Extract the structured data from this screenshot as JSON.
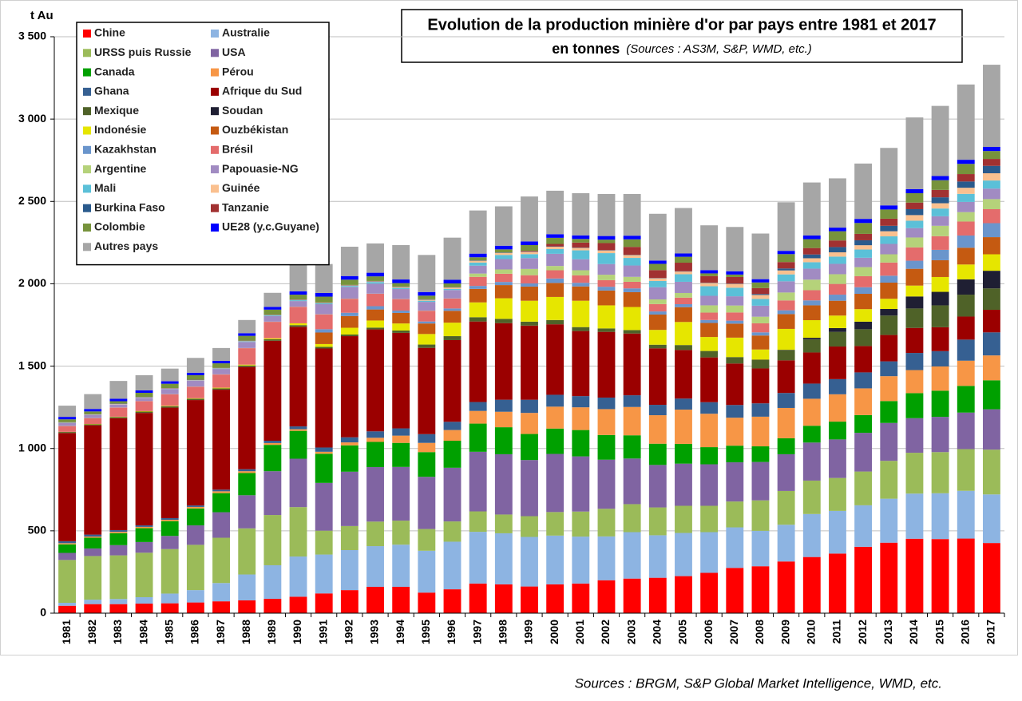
{
  "chart_data": {
    "type": "stacked-bar",
    "title": "Evolution de la production minière d'or par pays entre 1981 et 2017",
    "subtitle": "en tonnes",
    "subtitle_note": "(Sources : AS3M, S&P, WMD, etc.)",
    "footer": "Sources : BRGM, S&P Global Market Intelligence, WMD, etc.",
    "y_label": "t Au",
    "ylim": [
      0,
      3500
    ],
    "yticks": [
      0,
      500,
      {
        "value": 1000,
        "label": "1 000"
      },
      {
        "value": 1500,
        "label": "1 500"
      },
      {
        "value": 2000,
        "label": "2 000"
      },
      {
        "value": 2500,
        "label": "2 500"
      },
      {
        "value": 3000,
        "label": "3 000"
      },
      {
        "value": 3500,
        "label": "3 500"
      }
    ],
    "grid": true,
    "legend": "top-left",
    "categories": [
      "1981",
      "1982",
      "1983",
      "1984",
      "1985",
      "1986",
      "1987",
      "1988",
      "1989",
      "1990",
      "1991",
      "1992",
      "1993",
      "1994",
      "1995",
      "1996",
      "1997",
      "1998",
      "1999",
      "2000",
      "2001",
      "2002",
      "2003",
      "2004",
      "2005",
      "2006",
      "2007",
      "2008",
      "2009",
      "2010",
      "2011",
      "2012",
      "2013",
      "2014",
      "2015",
      "2016",
      "2017"
    ],
    "series": [
      {
        "name": "Chine",
        "color": "#ff0000",
        "values": [
          45,
          55,
          55,
          58,
          60,
          65,
          72,
          78,
          87,
          100,
          120,
          140,
          160,
          160,
          125,
          145,
          180,
          175,
          162,
          175,
          180,
          200,
          210,
          215,
          225,
          245,
          275,
          285,
          314,
          341,
          362,
          403,
          428,
          452,
          450,
          453,
          426
        ]
      },
      {
        "name": "Australie",
        "color": "#8db4e2",
        "values": [
          18,
          27,
          31,
          39,
          59,
          75,
          111,
          157,
          204,
          244,
          236,
          243,
          247,
          256,
          254,
          289,
          314,
          310,
          301,
          296,
          285,
          266,
          282,
          258,
          262,
          247,
          246,
          215,
          223,
          261,
          259,
          252,
          267,
          274,
          278,
          290,
          295
        ]
      },
      {
        "name": "URSS puis Russie",
        "color": "#9bbb59",
        "values": [
          260,
          265,
          265,
          270,
          270,
          275,
          275,
          280,
          305,
          300,
          145,
          146,
          149,
          146,
          132,
          123,
          124,
          114,
          126,
          143,
          152,
          168,
          170,
          169,
          165,
          160,
          157,
          185,
          205,
          203,
          200,
          205,
          230,
          248,
          250,
          253,
          272
        ]
      },
      {
        "name": "USA",
        "color": "#8064a2",
        "values": [
          43,
          46,
          62,
          65,
          80,
          118,
          155,
          201,
          266,
          294,
          290,
          330,
          331,
          326,
          317,
          326,
          362,
          366,
          341,
          353,
          335,
          298,
          277,
          258,
          256,
          252,
          238,
          233,
          223,
          231,
          234,
          235,
          230,
          210,
          214,
          222,
          245
        ]
      },
      {
        "name": "Canada",
        "color": "#00a000",
        "values": [
          52,
          65,
          73,
          84,
          90,
          103,
          116,
          135,
          160,
          169,
          177,
          160,
          153,
          146,
          150,
          164,
          171,
          164,
          158,
          154,
          160,
          150,
          141,
          129,
          120,
          104,
          101,
          95,
          97,
          102,
          108,
          108,
          133,
          152,
          159,
          162,
          176
        ]
      },
      {
        "name": "Pérou",
        "color": "#f79646",
        "values": [
          7,
          7,
          8,
          8,
          8,
          9,
          11,
          11,
          11,
          10,
          12,
          18,
          25,
          44,
          56,
          65,
          77,
          94,
          128,
          133,
          138,
          157,
          172,
          173,
          208,
          203,
          170,
          180,
          184,
          164,
          166,
          162,
          151,
          140,
          147,
          153,
          151
        ]
      },
      {
        "name": "Ghana",
        "color": "#366092",
        "values": [
          12,
          12,
          10,
          9,
          10,
          9,
          10,
          12,
          14,
          17,
          26,
          31,
          39,
          44,
          53,
          50,
          54,
          73,
          80,
          72,
          68,
          70,
          71,
          63,
          67,
          70,
          77,
          81,
          91,
          92,
          92,
          97,
          90,
          104,
          93,
          128,
          140
        ]
      },
      {
        "name": "Afrique du Sud",
        "color": "#9b0000",
        "values": [
          657,
          664,
          680,
          683,
          671,
          640,
          607,
          621,
          607,
          605,
          601,
          614,
          619,
          580,
          524,
          496,
          489,
          465,
          450,
          428,
          395,
          399,
          375,
          343,
          295,
          272,
          252,
          212,
          198,
          189,
          198,
          160,
          160,
          152,
          145,
          140,
          137
        ]
      },
      {
        "name": "Mexique",
        "color": "#4f6228",
        "values": [
          6,
          6,
          7,
          8,
          8,
          8,
          8,
          9,
          9,
          10,
          10,
          10,
          11,
          14,
          20,
          24,
          26,
          26,
          24,
          26,
          24,
          21,
          21,
          22,
          30,
          39,
          39,
          51,
          62,
          79,
          89,
          102,
          118,
          118,
          133,
          133,
          130
        ]
      },
      {
        "name": "Soudan",
        "color": "#1f1f33",
        "values": [
          0,
          0,
          0,
          0,
          0,
          0,
          0,
          0,
          0,
          0,
          0,
          0,
          0,
          0,
          0,
          0,
          0,
          0,
          0,
          0,
          0,
          0,
          0,
          0,
          0,
          0,
          0,
          2,
          2,
          10,
          23,
          46,
          40,
          73,
          82,
          93,
          107
        ]
      },
      {
        "name": "Indonésie",
        "color": "#e6e600",
        "values": [
          1,
          2,
          2,
          3,
          3,
          3,
          4,
          5,
          6,
          11,
          17,
          41,
          43,
          43,
          64,
          82,
          90,
          125,
          127,
          140,
          160,
          140,
          140,
          90,
          140,
          85,
          118,
          62,
          127,
          107,
          76,
          76,
          62,
          66,
          90,
          90,
          100
        ]
      },
      {
        "name": "Ouzbékistan",
        "color": "#c55a11",
        "values": [
          0,
          0,
          0,
          0,
          0,
          0,
          0,
          0,
          0,
          0,
          70,
          71,
          67,
          64,
          64,
          72,
          82,
          80,
          86,
          85,
          87,
          90,
          90,
          93,
          90,
          85,
          85,
          85,
          90,
          90,
          90,
          93,
          98,
          102,
          102,
          102,
          104
        ]
      },
      {
        "name": "Kazakhstan",
        "color": "#6a95cc",
        "values": [
          0,
          0,
          0,
          0,
          0,
          0,
          0,
          0,
          0,
          0,
          20,
          20,
          20,
          14,
          12,
          14,
          18,
          19,
          19,
          27,
          22,
          23,
          23,
          19,
          18,
          18,
          18,
          19,
          23,
          30,
          37,
          40,
          42,
          49,
          63,
          74,
          85
        ]
      },
      {
        "name": "Brésil",
        "color": "#e46c6c",
        "values": [
          35,
          35,
          55,
          60,
          70,
          70,
          80,
          100,
          100,
          100,
          90,
          85,
          75,
          70,
          65,
          60,
          55,
          50,
          50,
          50,
          45,
          40,
          40,
          45,
          40,
          45,
          50,
          55,
          60,
          62,
          65,
          67,
          80,
          81,
          83,
          85,
          85
        ]
      },
      {
        "name": "Argentine",
        "color": "#b5d27a",
        "values": [
          1,
          1,
          1,
          1,
          1,
          1,
          1,
          1,
          1,
          1,
          1,
          1,
          1,
          1,
          1,
          1,
          20,
          26,
          38,
          26,
          31,
          33,
          30,
          28,
          28,
          44,
          42,
          40,
          48,
          64,
          59,
          55,
          50,
          60,
          63,
          57,
          61
        ]
      },
      {
        "name": "Papouasie-NG",
        "color": "#a18bc2",
        "values": [
          17,
          18,
          18,
          19,
          31,
          36,
          33,
          37,
          34,
          34,
          61,
          71,
          61,
          60,
          53,
          51,
          48,
          63,
          66,
          74,
          67,
          65,
          69,
          74,
          68,
          58,
          56,
          67,
          68,
          67,
          63,
          57,
          63,
          57,
          58,
          62,
          64
        ]
      },
      {
        "name": "Mali",
        "color": "#5bc0d8",
        "values": [
          1,
          1,
          1,
          1,
          1,
          1,
          2,
          3,
          4,
          5,
          5,
          6,
          10,
          7,
          7,
          7,
          19,
          25,
          24,
          29,
          54,
          66,
          46,
          38,
          46,
          58,
          52,
          41,
          42,
          39,
          44,
          50,
          46,
          45,
          47,
          49,
          49
        ]
      },
      {
        "name": "Guinée",
        "color": "#fac08f",
        "values": [
          2,
          2,
          2,
          2,
          2,
          2,
          2,
          2,
          2,
          2,
          3,
          3,
          3,
          5,
          6,
          8,
          10,
          12,
          13,
          14,
          15,
          16,
          17,
          16,
          16,
          20,
          23,
          24,
          24,
          24,
          26,
          26,
          31,
          34,
          32,
          37,
          44
        ]
      },
      {
        "name": "Burkina Faso",
        "color": "#2a5a8c",
        "values": [
          2,
          2,
          2,
          2,
          2,
          2,
          2,
          2,
          2,
          2,
          2,
          2,
          2,
          2,
          2,
          2,
          2,
          2,
          2,
          2,
          2,
          2,
          2,
          2,
          2,
          2,
          2,
          6,
          12,
          23,
          32,
          30,
          33,
          36,
          36,
          38,
          45
        ]
      },
      {
        "name": "Tanzanie",
        "color": "#a13131",
        "values": [
          1,
          1,
          1,
          1,
          1,
          1,
          1,
          1,
          1,
          1,
          1,
          1,
          1,
          1,
          1,
          1,
          1,
          1,
          5,
          15,
          30,
          43,
          48,
          48,
          52,
          40,
          40,
          36,
          39,
          39,
          40,
          39,
          43,
          40,
          45,
          45,
          42
        ]
      },
      {
        "name": "Colombie",
        "color": "#77933c",
        "values": [
          17,
          16,
          14,
          25,
          26,
          27,
          27,
          29,
          30,
          29,
          35,
          32,
          28,
          21,
          22,
          22,
          19,
          19,
          35,
          37,
          22,
          21,
          46,
          38,
          36,
          16,
          15,
          34,
          48,
          54,
          56,
          66,
          56,
          57,
          59,
          62,
          48
        ]
      },
      {
        "name": "UE28 (y.c.Guyane)",
        "color": "#0000ff",
        "values": [
          15,
          15,
          15,
          15,
          15,
          15,
          15,
          16,
          17,
          20,
          22,
          22,
          22,
          22,
          22,
          22,
          22,
          22,
          22,
          22,
          22,
          22,
          22,
          20,
          20,
          20,
          20,
          20,
          20,
          22,
          22,
          25,
          25,
          25,
          25,
          25,
          25
        ]
      },
      {
        "name": "Autres pays",
        "color": "#a6a6a6",
        "values": [
          68,
          90,
          108,
          92,
          77,
          90,
          78,
          80,
          85,
          161,
          176,
          178,
          178,
          209,
          225,
          256,
          262,
          239,
          273,
          264,
          256,
          255,
          253,
          284,
          276,
          272,
          269,
          277,
          295,
          322,
          299,
          336,
          349,
          435,
          426,
          457,
          499
        ]
      }
    ]
  }
}
